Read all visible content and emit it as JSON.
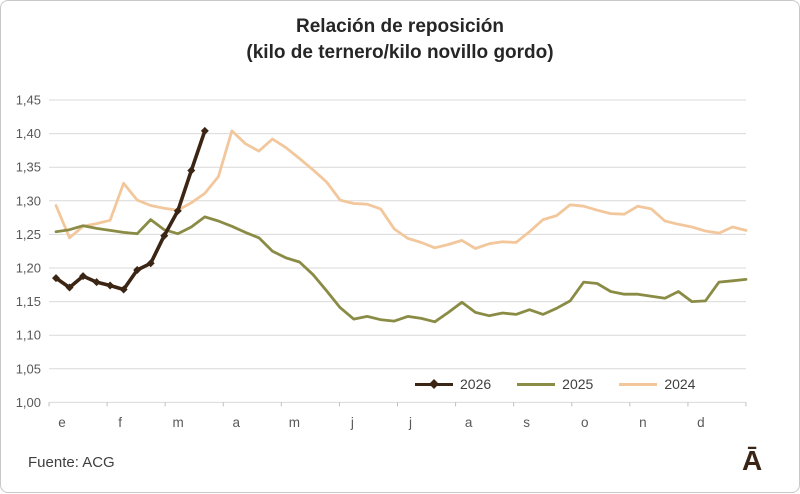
{
  "title": {
    "line1": "Relación de reposición",
    "line2": "(kilo de ternero/kilo novillo gordo)"
  },
  "footer": {
    "source": "Fuente: ACG",
    "logo": "Ā"
  },
  "chart_data": {
    "type": "line",
    "title": "Relación de reposición (kilo de ternero/kilo novillo gordo)",
    "x_axis": {
      "unit": "weeks",
      "month_labels": [
        "e",
        "f",
        "m",
        "a",
        "m",
        "j",
        "j",
        "a",
        "s",
        "o",
        "n",
        "d"
      ]
    },
    "y_axis": {
      "min": 1.0,
      "max": 1.45,
      "step": 0.05,
      "tick_labels": [
        "1,00",
        "1,05",
        "1,10",
        "1,15",
        "1,20",
        "1,25",
        "1,30",
        "1,35",
        "1,40",
        "1,45"
      ]
    },
    "ylim": [
      1.0,
      1.45
    ],
    "grid": true,
    "legend_position": "bottom-right-inside",
    "colors": {
      "grid": "#d9d9d9",
      "tick": "#bfbfbf",
      "axis_text": "#595959"
    },
    "series": [
      {
        "name": "2026",
        "color": "#3b2514",
        "marker": "diamond",
        "line_width": 3.6,
        "values": [
          1.185,
          1.171,
          1.188,
          1.179,
          1.174,
          1.168,
          1.197,
          1.207,
          1.248,
          1.285,
          1.345,
          1.404
        ]
      },
      {
        "name": "2025",
        "color": "#8a8c45",
        "marker": "none",
        "line_width": 2.8,
        "values": [
          1.254,
          1.257,
          1.263,
          1.259,
          1.256,
          1.253,
          1.251,
          1.272,
          1.257,
          1.251,
          1.261,
          1.276,
          1.27,
          1.262,
          1.253,
          1.245,
          1.225,
          1.215,
          1.209,
          1.19,
          1.166,
          1.141,
          1.124,
          1.128,
          1.123,
          1.121,
          1.128,
          1.125,
          1.12,
          1.134,
          1.149,
          1.134,
          1.129,
          1.133,
          1.131,
          1.138,
          1.131,
          1.14,
          1.151,
          1.179,
          1.177,
          1.165,
          1.161,
          1.161,
          1.158,
          1.155,
          1.165,
          1.15,
          1.151,
          1.179,
          1.181,
          1.183
        ]
      },
      {
        "name": "2024",
        "color": "#f3c79c",
        "marker": "none",
        "line_width": 2.8,
        "values": [
          1.293,
          1.245,
          1.262,
          1.266,
          1.271,
          1.326,
          1.301,
          1.293,
          1.289,
          1.286,
          1.297,
          1.311,
          1.336,
          1.404,
          1.385,
          1.374,
          1.392,
          1.379,
          1.363,
          1.346,
          1.328,
          1.301,
          1.296,
          1.295,
          1.288,
          1.258,
          1.244,
          1.238,
          1.23,
          1.235,
          1.241,
          1.229,
          1.236,
          1.239,
          1.238,
          1.254,
          1.272,
          1.278,
          1.294,
          1.292,
          1.286,
          1.281,
          1.28,
          1.292,
          1.288,
          1.27,
          1.265,
          1.261,
          1.255,
          1.252,
          1.261,
          1.256
        ]
      }
    ]
  }
}
